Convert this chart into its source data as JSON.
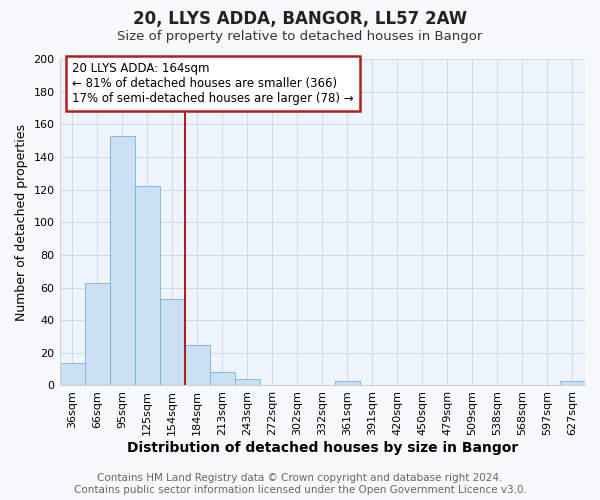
{
  "title": "20, LLYS ADDA, BANGOR, LL57 2AW",
  "subtitle": "Size of property relative to detached houses in Bangor",
  "xlabel": "Distribution of detached houses by size in Bangor",
  "ylabel": "Number of detached properties",
  "bar_color": "#cce0f5",
  "bar_edge_color": "#7ab0d8",
  "categories": [
    "36sqm",
    "66sqm",
    "95sqm",
    "125sqm",
    "154sqm",
    "184sqm",
    "213sqm",
    "243sqm",
    "272sqm",
    "302sqm",
    "332sqm",
    "361sqm",
    "391sqm",
    "420sqm",
    "450sqm",
    "479sqm",
    "509sqm",
    "538sqm",
    "568sqm",
    "597sqm",
    "627sqm"
  ],
  "values": [
    14,
    63,
    153,
    122,
    53,
    25,
    8,
    4,
    0,
    0,
    0,
    3,
    0,
    0,
    0,
    0,
    0,
    0,
    0,
    0,
    3
  ],
  "vline_x": 4.5,
  "vline_color": "#aa2222",
  "annotation_text_line1": "20 LLYS ADDA: 164sqm",
  "annotation_text_line2": "← 81% of detached houses are smaller (366)",
  "annotation_text_line3": "17% of semi-detached houses are larger (78) →",
  "ylim": [
    0,
    200
  ],
  "yticks": [
    0,
    20,
    40,
    60,
    80,
    100,
    120,
    140,
    160,
    180,
    200
  ],
  "footer_line1": "Contains HM Land Registry data © Crown copyright and database right 2024.",
  "footer_line2": "Contains public sector information licensed under the Open Government Licence v3.0.",
  "fig_bg_color": "#f8f9fa",
  "plot_bg_color": "#eef4fc",
  "grid_color": "#d0d8e8",
  "title_fontsize": 12,
  "subtitle_fontsize": 9.5,
  "xlabel_fontsize": 10,
  "ylabel_fontsize": 9,
  "tick_fontsize": 8,
  "footer_fontsize": 7.5,
  "ann_fontsize": 8.5
}
